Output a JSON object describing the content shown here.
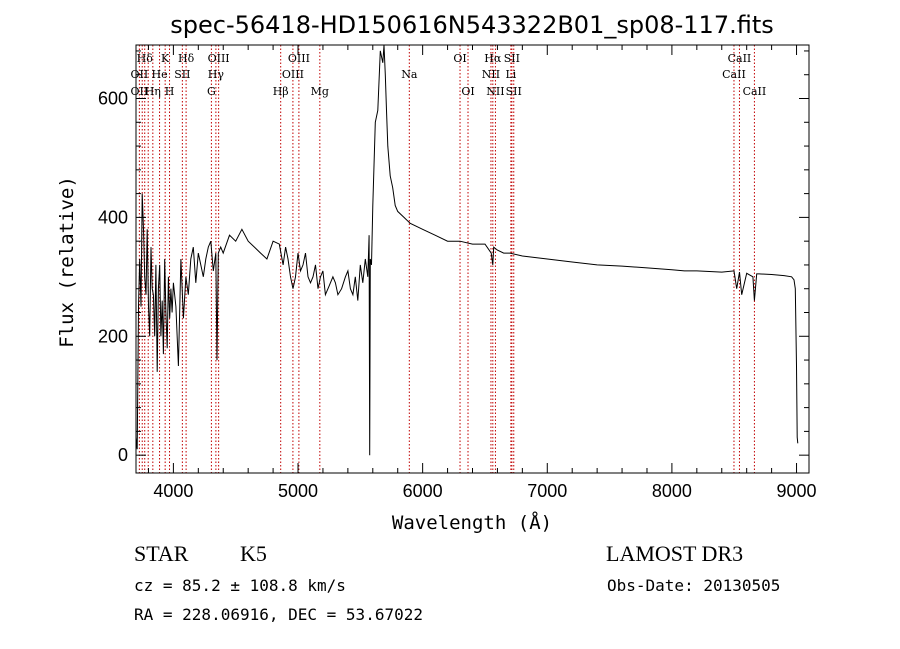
{
  "chart_data": {
    "type": "line",
    "title": "spec-56418-HD150616N543322B01_sp08-117.fits",
    "xlabel": "Wavelength (Å)",
    "ylabel": "Flux (relative)",
    "xlim": [
      3700,
      9100
    ],
    "ylim": [
      -30,
      690
    ],
    "x_ticks": [
      4000,
      5000,
      6000,
      7000,
      8000,
      9000
    ],
    "y_ticks": [
      0,
      200,
      400,
      600
    ],
    "grid": false,
    "series": [
      {
        "x": [
          3700,
          3710,
          3720,
          3730,
          3740,
          3750,
          3760,
          3770,
          3780,
          3790,
          3800,
          3810,
          3820,
          3830,
          3840,
          3850,
          3860,
          3870,
          3880,
          3890,
          3900,
          3910,
          3920,
          3930,
          3940,
          3950,
          3960,
          3970,
          3980,
          3990,
          4000,
          4020,
          4040,
          4060,
          4080,
          4100,
          4120,
          4140,
          4160,
          4180,
          4200,
          4220,
          4240,
          4260,
          4280,
          4300,
          4320,
          4340,
          4350,
          4360,
          4380,
          4400,
          4450,
          4500,
          4550,
          4600,
          4650,
          4700,
          4750,
          4800,
          4850,
          4880,
          4900,
          4920,
          4940,
          4960,
          4980,
          5000,
          5020,
          5040,
          5060,
          5080,
          5100,
          5120,
          5140,
          5160,
          5180,
          5200,
          5220,
          5250,
          5280,
          5300,
          5320,
          5350,
          5380,
          5400,
          5420,
          5440,
          5460,
          5480,
          5500,
          5520,
          5540,
          5560,
          5570,
          5575,
          5580,
          5590,
          5600,
          5620,
          5640,
          5660,
          5680,
          5690,
          5700,
          5710,
          5720,
          5740,
          5760,
          5780,
          5800,
          5850,
          5900,
          5950,
          6000,
          6100,
          6200,
          6300,
          6400,
          6500,
          6550,
          6563,
          6570,
          6600,
          6650,
          6700,
          6800,
          7000,
          7200,
          7400,
          7600,
          7800,
          8000,
          8100,
          8200,
          8300,
          8400,
          8498,
          8520,
          8542,
          8560,
          8600,
          8650,
          8662,
          8680,
          8700,
          8800,
          8900,
          8960,
          8980,
          8990,
          9000,
          9005,
          9010
        ],
        "y": [
          30,
          10,
          250,
          330,
          250,
          440,
          380,
          300,
          270,
          380,
          250,
          200,
          350,
          280,
          270,
          200,
          320,
          140,
          280,
          320,
          200,
          260,
          170,
          330,
          240,
          180,
          300,
          230,
          280,
          240,
          290,
          250,
          150,
          330,
          230,
          300,
          270,
          330,
          350,
          290,
          340,
          320,
          300,
          330,
          350,
          360,
          310,
          340,
          160,
          340,
          350,
          340,
          370,
          360,
          380,
          360,
          350,
          340,
          330,
          360,
          355,
          320,
          350,
          330,
          300,
          280,
          300,
          340,
          310,
          320,
          340,
          300,
          290,
          300,
          320,
          280,
          300,
          310,
          270,
          285,
          300,
          290,
          270,
          280,
          300,
          310,
          280,
          270,
          300,
          260,
          320,
          290,
          330,
          300,
          370,
          0,
          330,
          320,
          420,
          560,
          580,
          680,
          660,
          690,
          640,
          580,
          520,
          470,
          450,
          420,
          410,
          400,
          390,
          385,
          380,
          370,
          360,
          360,
          355,
          355,
          340,
          320,
          350,
          345,
          340,
          340,
          335,
          330,
          325,
          320,
          318,
          315,
          312,
          310,
          310,
          309,
          308,
          310,
          280,
          308,
          270,
          306,
          300,
          260,
          305,
          305,
          304,
          302,
          300,
          295,
          280,
          150,
          30,
          20
        ]
      }
    ],
    "line_ids": [
      {
        "label": "Hδ",
        "x": 3770,
        "row": 1
      },
      {
        "label": "OII",
        "x": 3727,
        "row": 2
      },
      {
        "label": "OII",
        "x": 3727,
        "row": 3
      },
      {
        "label": "K",
        "x": 3934,
        "row": 1
      },
      {
        "label": "He",
        "x": 3889,
        "row": 2
      },
      {
        "label": "Hη",
        "x": 3835,
        "row": 3
      },
      {
        "label": "Hδ",
        "x": 4102,
        "row": 1
      },
      {
        "label": "SII",
        "x": 4072,
        "row": 2
      },
      {
        "label": "H",
        "x": 3969,
        "row": 3
      },
      {
        "label": "OIII",
        "x": 4363,
        "row": 1
      },
      {
        "label": "Hγ",
        "x": 4341,
        "row": 2
      },
      {
        "label": "G",
        "x": 4305,
        "row": 3
      },
      {
        "label": "OIII",
        "x": 5007,
        "row": 1
      },
      {
        "label": "OIII",
        "x": 4959,
        "row": 2
      },
      {
        "label": "Hβ",
        "x": 4861,
        "row": 3
      },
      {
        "label": "Mg",
        "x": 5175,
        "row": 3
      },
      {
        "label": "Na",
        "x": 5893,
        "row": 2
      },
      {
        "label": "OI",
        "x": 6300,
        "row": 1
      },
      {
        "label": "OI",
        "x": 6364,
        "row": 3
      },
      {
        "label": "Hα",
        "x": 6563,
        "row": 1
      },
      {
        "label": "SII",
        "x": 6716,
        "row": 1
      },
      {
        "label": "NII",
        "x": 6548,
        "row": 2
      },
      {
        "label": "Li",
        "x": 6708,
        "row": 2
      },
      {
        "label": "NII",
        "x": 6584,
        "row": 3
      },
      {
        "label": "SII",
        "x": 6731,
        "row": 3
      },
      {
        "label": "CaII",
        "x": 8542,
        "row": 1
      },
      {
        "label": "CaII",
        "x": 8498,
        "row": 2
      },
      {
        "label": "CaII",
        "x": 8662,
        "row": 3
      }
    ],
    "line_marker_x": [
      3727,
      3750,
      3770,
      3798,
      3835,
      3889,
      3934,
      3969,
      4072,
      4102,
      4305,
      4341,
      4363,
      4861,
      4959,
      5007,
      5175,
      5893,
      6300,
      6364,
      6548,
      6563,
      6584,
      6708,
      6716,
      6731,
      8498,
      8542,
      8662
    ],
    "line_color": "#000000",
    "marker_color": "#c00000"
  },
  "info": {
    "class_label": "STAR",
    "subclass": "K5",
    "survey": "LAMOST DR3",
    "cz_text": "cz = 85.2 ± 108.8 km/s",
    "obs_date": "Obs-Date: 20130505",
    "coords": "RA = 228.06916, DEC =  53.67022"
  }
}
